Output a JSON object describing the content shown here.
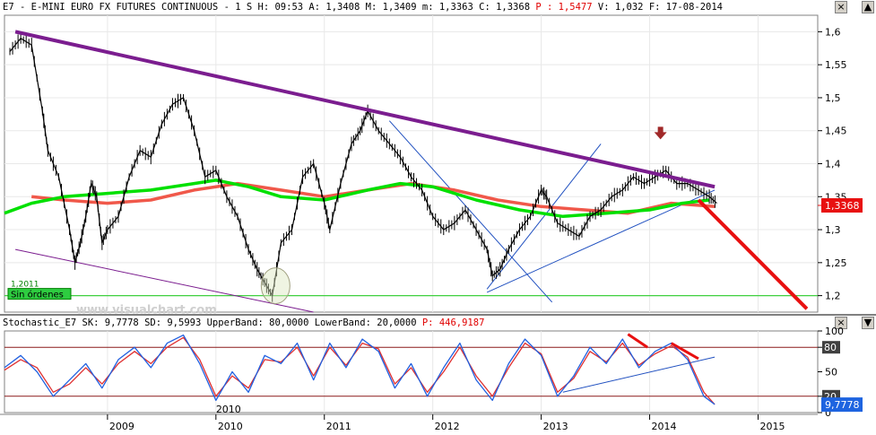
{
  "price_header": {
    "symbol": "E7",
    "name": "E-MINI EURO FX FUTURES CONTINUOUS",
    "period": "1 S",
    "hour_label": "H: 09:53",
    "open_label": "A: 1,3408",
    "max_label": "M: 1,3409",
    "min_label": "m: 1,3363",
    "close_label": "C: 1,3368",
    "p_label": "P : 1,5477",
    "volume_label": "V: 1,032",
    "date_label": "F: 17-08-2014"
  },
  "stoch_header": {
    "name": "Stochastic_E7",
    "sk_label": "SK: 9,7778",
    "sd_label": "SD: 9,5993",
    "upper_label": "UpperBand: 80,0000",
    "lower_label": "LowerBand: 20,0000",
    "p_label": "P: 446,9187"
  },
  "window_buttons": {
    "close": "×",
    "up": "▲",
    "down": "▼"
  },
  "annotations": {
    "year_2011_tag": "1,2011",
    "no_orders": "Sin órdenes",
    "watermark": "www.visualchart.com",
    "stoch_2010_tag": "2010"
  },
  "colors": {
    "price": "#000000",
    "ma_short": "#00e000",
    "ma_long": "#f0584a",
    "trend_purple": "#7b1d8f",
    "trend_red": "#e81010",
    "thin_blue": "#2050c0",
    "support_green": "#40d040",
    "sk": "#2060e0",
    "sd": "#e03030",
    "band": "#8b1a1a",
    "current_price_badge": "#e81010",
    "current_stoch_badge": "#1e64e0"
  },
  "chart_data": [
    {
      "type": "line",
      "title": "E7 - E-MINI EURO FX FUTURES CONTINUOUS",
      "x_ticks": [
        "2009",
        "2010",
        "2011",
        "2012",
        "2013",
        "2014",
        "2015"
      ],
      "y_ticks": [
        "1,6",
        "1,55",
        "1,5",
        "1,45",
        "1,4",
        "1,35",
        "1,3",
        "1,25",
        "1,2"
      ],
      "ylim": [
        1.175,
        1.625
      ],
      "xlim": [
        2008.05,
        2015.55
      ],
      "current_value_label": "1,3368",
      "series": [
        {
          "role": "price",
          "x": [
            2008.1,
            2008.2,
            2008.3,
            2008.4,
            2008.45,
            2008.55,
            2008.65,
            2008.7,
            2008.75,
            2008.8,
            2008.85,
            2008.9,
            2008.95,
            2009.0,
            2009.1,
            2009.2,
            2009.3,
            2009.4,
            2009.5,
            2009.6,
            2009.7,
            2009.8,
            2009.9,
            2010.0,
            2010.1,
            2010.2,
            2010.3,
            2010.38,
            2010.45,
            2010.52,
            2010.6,
            2010.7,
            2010.8,
            2010.9,
            2011.0,
            2011.05,
            2011.15,
            2011.25,
            2011.33,
            2011.4,
            2011.5,
            2011.6,
            2011.7,
            2011.8,
            2011.9,
            2012.0,
            2012.1,
            2012.2,
            2012.3,
            2012.4,
            2012.5,
            2012.55,
            2012.62,
            2012.7,
            2012.8,
            2012.9,
            2013.0,
            2013.05,
            2013.15,
            2013.25,
            2013.35,
            2013.45,
            2013.55,
            2013.65,
            2013.75,
            2013.85,
            2013.95,
            2014.05,
            2014.15,
            2014.25,
            2014.35,
            2014.45,
            2014.55,
            2014.62
          ],
          "values": [
            1.57,
            1.59,
            1.58,
            1.48,
            1.42,
            1.38,
            1.3,
            1.25,
            1.28,
            1.32,
            1.37,
            1.35,
            1.28,
            1.3,
            1.32,
            1.38,
            1.42,
            1.41,
            1.46,
            1.49,
            1.5,
            1.45,
            1.38,
            1.39,
            1.35,
            1.32,
            1.27,
            1.24,
            1.22,
            1.2,
            1.28,
            1.3,
            1.38,
            1.4,
            1.34,
            1.3,
            1.37,
            1.43,
            1.45,
            1.48,
            1.45,
            1.43,
            1.41,
            1.38,
            1.36,
            1.32,
            1.3,
            1.31,
            1.33,
            1.3,
            1.27,
            1.23,
            1.24,
            1.27,
            1.3,
            1.32,
            1.36,
            1.35,
            1.31,
            1.3,
            1.29,
            1.32,
            1.33,
            1.35,
            1.36,
            1.38,
            1.37,
            1.38,
            1.39,
            1.37,
            1.37,
            1.36,
            1.35,
            1.34
          ]
        },
        {
          "role": "moving-average-short",
          "x": [
            2008.05,
            2008.3,
            2008.6,
            2009.0,
            2009.4,
            2009.8,
            2010.0,
            2010.3,
            2010.6,
            2011.0,
            2011.4,
            2011.7,
            2012.0,
            2012.4,
            2012.8,
            2013.2,
            2013.6,
            2014.0,
            2014.3,
            2014.55
          ],
          "values": [
            1.325,
            1.34,
            1.35,
            1.355,
            1.36,
            1.37,
            1.375,
            1.365,
            1.35,
            1.345,
            1.36,
            1.37,
            1.365,
            1.345,
            1.33,
            1.32,
            1.325,
            1.33,
            1.34,
            1.345
          ]
        },
        {
          "role": "moving-average-long",
          "x": [
            2008.3,
            2008.6,
            2009.0,
            2009.4,
            2009.8,
            2010.2,
            2010.6,
            2011.0,
            2011.4,
            2011.8,
            2012.2,
            2012.6,
            2013.0,
            2013.4,
            2013.8,
            2014.2,
            2014.6
          ],
          "values": [
            1.35,
            1.345,
            1.34,
            1.345,
            1.36,
            1.37,
            1.36,
            1.35,
            1.36,
            1.37,
            1.36,
            1.345,
            1.335,
            1.33,
            1.325,
            1.34,
            1.335
          ]
        }
      ],
      "trend_lines": [
        {
          "role": "purple-resistance",
          "x": [
            2008.15,
            2014.6
          ],
          "values": [
            1.6,
            1.365
          ]
        },
        {
          "role": "red-projection",
          "x": [
            2014.45,
            2015.45
          ],
          "values": [
            1.345,
            1.18
          ]
        },
        {
          "role": "blue-upper-channel",
          "x": [
            2011.6,
            2013.1
          ],
          "values": [
            1.465,
            1.19
          ]
        },
        {
          "role": "blue-rising",
          "x": [
            2012.5,
            2014.6
          ],
          "values": [
            1.205,
            1.36
          ]
        },
        {
          "role": "blue-steep",
          "x": [
            2012.5,
            2013.55
          ],
          "values": [
            1.21,
            1.43
          ]
        },
        {
          "role": "purple-lower",
          "x": [
            2008.15,
            2010.9
          ],
          "values": [
            1.27,
            1.175
          ]
        },
        {
          "role": "support",
          "x": [
            2008.05,
            2015.55
          ],
          "values": [
            1.2,
            1.2
          ]
        }
      ],
      "markers": [
        {
          "role": "down-arrow",
          "x": 2014.1,
          "value": 1.445
        },
        {
          "role": "circle",
          "x": 2010.55,
          "value": 1.215
        }
      ]
    },
    {
      "type": "line",
      "title": "Stochastic_E7",
      "y_ticks": [
        "100",
        "80",
        "50",
        "20",
        "0"
      ],
      "ylim": [
        0,
        100
      ],
      "bands": [
        80,
        20
      ],
      "current_value_label": "9,7778",
      "series": [
        {
          "name": "SK",
          "x": [
            2008.05,
            2008.2,
            2008.35,
            2008.5,
            2008.65,
            2008.8,
            2008.95,
            2009.1,
            2009.25,
            2009.4,
            2009.55,
            2009.7,
            2009.85,
            2010.0,
            2010.15,
            2010.3,
            2010.45,
            2010.6,
            2010.75,
            2010.9,
            2011.05,
            2011.2,
            2011.35,
            2011.5,
            2011.65,
            2011.8,
            2011.95,
            2012.1,
            2012.25,
            2012.4,
            2012.55,
            2012.7,
            2012.85,
            2013.0,
            2013.15,
            2013.3,
            2013.45,
            2013.6,
            2013.75,
            2013.9,
            2014.05,
            2014.2,
            2014.35,
            2014.5,
            2014.6
          ],
          "values": [
            55,
            70,
            50,
            20,
            40,
            60,
            30,
            65,
            80,
            55,
            85,
            95,
            60,
            15,
            50,
            25,
            70,
            60,
            85,
            40,
            85,
            55,
            90,
            75,
            30,
            60,
            20,
            55,
            85,
            40,
            15,
            60,
            90,
            70,
            20,
            45,
            80,
            60,
            90,
            55,
            75,
            85,
            65,
            20,
            10
          ]
        },
        {
          "name": "SD",
          "x": [
            2008.05,
            2008.2,
            2008.35,
            2008.5,
            2008.65,
            2008.8,
            2008.95,
            2009.1,
            2009.25,
            2009.4,
            2009.55,
            2009.7,
            2009.85,
            2010.0,
            2010.15,
            2010.3,
            2010.45,
            2010.6,
            2010.75,
            2010.9,
            2011.05,
            2011.2,
            2011.35,
            2011.5,
            2011.65,
            2011.8,
            2011.95,
            2012.1,
            2012.25,
            2012.4,
            2012.55,
            2012.7,
            2012.85,
            2013.0,
            2013.15,
            2013.3,
            2013.45,
            2013.6,
            2013.75,
            2013.9,
            2014.05,
            2014.2,
            2014.35,
            2014.5,
            2014.6
          ],
          "values": [
            52,
            65,
            55,
            25,
            35,
            55,
            35,
            60,
            75,
            60,
            80,
            92,
            65,
            20,
            45,
            30,
            65,
            62,
            80,
            45,
            80,
            58,
            85,
            78,
            35,
            55,
            25,
            50,
            80,
            45,
            20,
            55,
            85,
            72,
            25,
            42,
            75,
            62,
            85,
            58,
            72,
            82,
            68,
            25,
            10
          ]
        }
      ],
      "trend_lines": [
        {
          "role": "red-down-1",
          "x": [
            2013.8,
            2013.98
          ],
          "values": [
            96,
            80
          ]
        },
        {
          "role": "red-down-2",
          "x": [
            2014.2,
            2014.45
          ],
          "values": [
            85,
            66
          ]
        },
        {
          "role": "blue-rising",
          "x": [
            2013.2,
            2014.6
          ],
          "values": [
            25,
            68
          ]
        }
      ]
    }
  ]
}
